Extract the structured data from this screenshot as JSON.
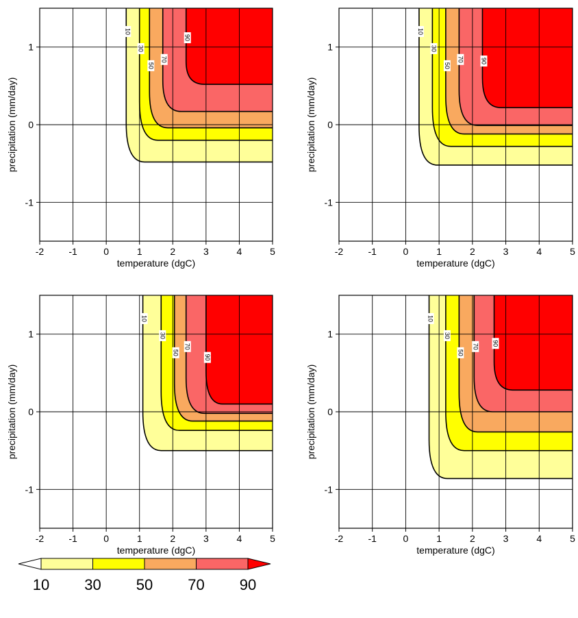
{
  "colors": {
    "band_10_30": "#ffff99",
    "band_30_50": "#ffff00",
    "band_50_70": "#f9a95f",
    "band_70_90": "#fa6666",
    "band_90_plus": "#ff0000",
    "contour": "#000000",
    "grid": "#000000"
  },
  "chart_data": [
    {
      "type": "contour",
      "panel": "top-left",
      "xlabel": "temperature (dgC)",
      "ylabel": "precipitation (mm/day)",
      "xlim": [
        -2,
        5
      ],
      "ylim": [
        -1.5,
        1.5
      ],
      "xticks": [
        "-2",
        "-1",
        "0",
        "1",
        "2",
        "3",
        "4",
        "5"
      ],
      "yticks": [
        "-1",
        "0",
        "1"
      ],
      "grid": true,
      "levels": [
        {
          "level": 10,
          "t_min": 0.6,
          "p_min": -0.48
        },
        {
          "level": 30,
          "t_min": 1.0,
          "p_min": -0.2
        },
        {
          "level": 50,
          "t_min": 1.3,
          "p_min": -0.04
        },
        {
          "level": 70,
          "t_min": 1.7,
          "p_min": 0.17
        },
        {
          "level": 90,
          "t_min": 2.4,
          "p_min": 0.52
        }
      ]
    },
    {
      "type": "contour",
      "panel": "top-right",
      "xlabel": "temperature (dgC)",
      "ylabel": "precipitation (mm/day)",
      "xlim": [
        -2,
        5
      ],
      "ylim": [
        -1.5,
        1.5
      ],
      "xticks": [
        "-2",
        "-1",
        "0",
        "1",
        "2",
        "3",
        "4",
        "5"
      ],
      "yticks": [
        "-1",
        "0",
        "1"
      ],
      "grid": true,
      "levels": [
        {
          "level": 10,
          "t_min": 0.4,
          "p_min": -0.52
        },
        {
          "level": 30,
          "t_min": 0.8,
          "p_min": -0.28
        },
        {
          "level": 50,
          "t_min": 1.2,
          "p_min": -0.12
        },
        {
          "level": 70,
          "t_min": 1.6,
          "p_min": -0.01
        },
        {
          "level": 90,
          "t_min": 2.3,
          "p_min": 0.22
        }
      ]
    },
    {
      "type": "contour",
      "panel": "bottom-left",
      "xlabel": "temperature (dgC)",
      "ylabel": "precipitation (mm/day)",
      "xlim": [
        -2,
        5
      ],
      "ylim": [
        -1.5,
        1.5
      ],
      "xticks": [
        "-2",
        "-1",
        "0",
        "1",
        "2",
        "3",
        "4",
        "5"
      ],
      "yticks": [
        "-1",
        "0",
        "1"
      ],
      "grid": true,
      "levels": [
        {
          "level": 10,
          "t_min": 1.1,
          "p_min": -0.5
        },
        {
          "level": 30,
          "t_min": 1.65,
          "p_min": -0.24
        },
        {
          "level": 50,
          "t_min": 2.05,
          "p_min": -0.12
        },
        {
          "level": 70,
          "t_min": 2.4,
          "p_min": -0.02
        },
        {
          "level": 90,
          "t_min": 3.0,
          "p_min": 0.1
        }
      ]
    },
    {
      "type": "contour",
      "panel": "bottom-right",
      "xlabel": "temperature (dgC)",
      "ylabel": "precipitation (mm/day)",
      "xlim": [
        -2,
        5
      ],
      "ylim": [
        -1.5,
        1.5
      ],
      "xticks": [
        "-2",
        "-1",
        "0",
        "1",
        "2",
        "3",
        "4",
        "5"
      ],
      "yticks": [
        "-1",
        "0",
        "1"
      ],
      "grid": true,
      "levels": [
        {
          "level": 10,
          "t_min": 0.7,
          "p_min": -0.86
        },
        {
          "level": 30,
          "t_min": 1.2,
          "p_min": -0.5
        },
        {
          "level": 50,
          "t_min": 1.6,
          "p_min": -0.26
        },
        {
          "level": 70,
          "t_min": 2.05,
          "p_min": 0.0
        },
        {
          "level": 90,
          "t_min": 2.65,
          "p_min": 0.28
        }
      ]
    }
  ],
  "colorbar": {
    "ticks": [
      "10",
      "30",
      "50",
      "70",
      "90"
    ],
    "extend": "both"
  }
}
